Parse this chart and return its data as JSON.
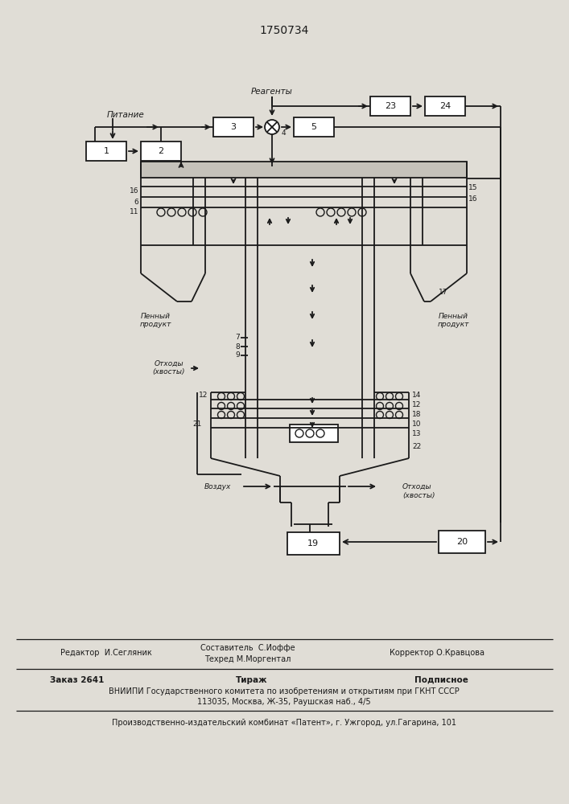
{
  "title": "1750734",
  "bg_color": "#e0ddd6",
  "line_color": "#1a1a1a",
  "lw": 1.3,
  "footer": {
    "editor": "Редактор  И.Сегляник",
    "composer_line1": "Составитель  С.Иоффе",
    "composer_line2": "Техред М.Моргентал",
    "corrector": "Корректор О.Кравцова",
    "order": "Заказ 2641",
    "tirazh": "Тираж",
    "podpisnoe": "Подписное",
    "vniipи_line1": "ВНИИПИ Государственного комитета по изобретениям и открытиям при ГКНТ СССР",
    "vniipи_line2": "113035, Москва, Ж-35, Раушская наб., 4/5",
    "patent": "Производственно-издательский комбинат «Патент», г. Ужгород, ул.Гагарина, 101"
  }
}
